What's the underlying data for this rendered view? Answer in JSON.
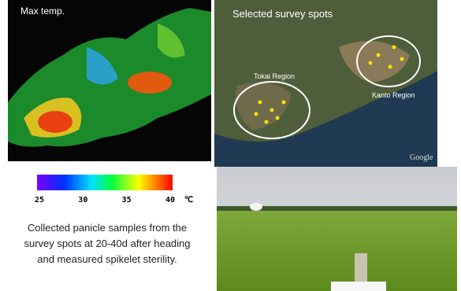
{
  "left_panel": {
    "label": "Max temp.",
    "colorbar": {
      "ticks": [
        25,
        30,
        35,
        40
      ],
      "unit": "℃"
    }
  },
  "right_panel": {
    "label": "Selected survey spots",
    "regions": [
      "Tokai Region",
      "Kanto Region"
    ],
    "attribution": "Google"
  },
  "caption": "Collected panicle samples from the survey spots at 20-40d after heading and measured spikelet sterility."
}
